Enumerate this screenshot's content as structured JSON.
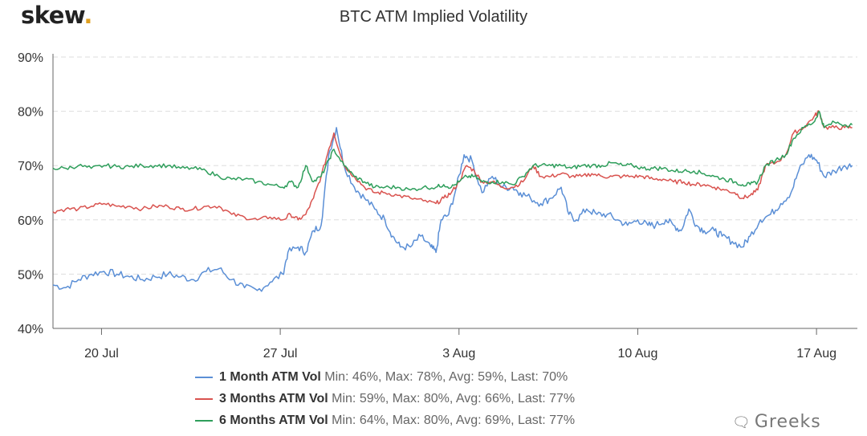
{
  "brand": {
    "logo_text": "skew",
    "logo_dot": "."
  },
  "watermark": {
    "text": "Greeks",
    "icon": "chat-bubble-icon"
  },
  "colors": {
    "one_month": "#5b8fd6",
    "three_month": "#d9534f",
    "six_month": "#2e9e5b",
    "grid": "#dddddd",
    "axis": "#666666"
  },
  "chart_data": {
    "type": "line",
    "title": "BTC ATM Implied Volatility",
    "xlabel": "",
    "ylabel": "",
    "x_ticks": [
      {
        "label": "20 Jul",
        "x": 2.9
      },
      {
        "label": "27 Jul",
        "x": 9.9
      },
      {
        "label": "3 Aug",
        "x": 16.9
      },
      {
        "label": "10 Aug",
        "x": 23.9
      },
      {
        "label": "17 Aug",
        "x": 30.9
      }
    ],
    "xlim": [
      1.0,
      32.5
    ],
    "y_ticks": [
      "40%",
      "50%",
      "60%",
      "70%",
      "80%",
      "90%"
    ],
    "ylim": [
      40,
      90
    ],
    "grid": "horizontal dashed",
    "series": [
      {
        "name": "1 Month ATM Vol",
        "stats": "Min: 46%, Max: 78%, Avg: 59%, Last: 70%",
        "color_key": "one_month",
        "points": [
          [
            1.0,
            48
          ],
          [
            1.5,
            47.5
          ],
          [
            2.0,
            49
          ],
          [
            2.5,
            50
          ],
          [
            3.0,
            50.5
          ],
          [
            3.5,
            50
          ],
          [
            4.0,
            49.5
          ],
          [
            4.5,
            49
          ],
          [
            5.0,
            49.5
          ],
          [
            5.5,
            50
          ],
          [
            6.0,
            49.5
          ],
          [
            6.5,
            49
          ],
          [
            7.0,
            50.5
          ],
          [
            7.5,
            51
          ],
          [
            8.0,
            49
          ],
          [
            8.5,
            47.5
          ],
          [
            9.0,
            47
          ],
          [
            9.5,
            48.5
          ],
          [
            10.0,
            50
          ],
          [
            10.2,
            54
          ],
          [
            10.6,
            55
          ],
          [
            10.9,
            54
          ],
          [
            11.2,
            58
          ],
          [
            11.5,
            59
          ],
          [
            11.8,
            72
          ],
          [
            12.1,
            77
          ],
          [
            12.4,
            70
          ],
          [
            12.8,
            66
          ],
          [
            13.2,
            64
          ],
          [
            13.6,
            62
          ],
          [
            14.0,
            60
          ],
          [
            14.3,
            57
          ],
          [
            14.6,
            55
          ],
          [
            15.0,
            55
          ],
          [
            15.4,
            57
          ],
          [
            15.8,
            55
          ],
          [
            16.0,
            54
          ],
          [
            16.2,
            60
          ],
          [
            16.5,
            61
          ],
          [
            16.8,
            66
          ],
          [
            17.1,
            72
          ],
          [
            17.4,
            71
          ],
          [
            17.8,
            65
          ],
          [
            18.2,
            68
          ],
          [
            18.6,
            66
          ],
          [
            19.0,
            66
          ],
          [
            19.3,
            65
          ],
          [
            19.7,
            64
          ],
          [
            20.1,
            63
          ],
          [
            20.5,
            64
          ],
          [
            20.9,
            66
          ],
          [
            21.2,
            61
          ],
          [
            21.5,
            60
          ],
          [
            21.9,
            62
          ],
          [
            22.3,
            61
          ],
          [
            22.7,
            61
          ],
          [
            23.1,
            60
          ],
          [
            23.5,
            59
          ],
          [
            23.9,
            60
          ],
          [
            24.3,
            59
          ],
          [
            24.6,
            59
          ],
          [
            25.0,
            60
          ],
          [
            25.3,
            59
          ],
          [
            25.6,
            58
          ],
          [
            25.9,
            62
          ],
          [
            26.2,
            59
          ],
          [
            26.5,
            58
          ],
          [
            26.9,
            58
          ],
          [
            27.2,
            57
          ],
          [
            27.6,
            56
          ],
          [
            28.0,
            55
          ],
          [
            28.3,
            57
          ],
          [
            28.7,
            60
          ],
          [
            29.1,
            61
          ],
          [
            29.5,
            63
          ],
          [
            29.9,
            65
          ],
          [
            30.2,
            69
          ],
          [
            30.6,
            72
          ],
          [
            30.9,
            71
          ],
          [
            31.2,
            68
          ],
          [
            31.6,
            69
          ],
          [
            32.0,
            70
          ],
          [
            32.3,
            70
          ]
        ]
      },
      {
        "name": "3 Months ATM Vol",
        "stats": "Min: 59%, Max: 80%, Avg: 66%, Last: 77%",
        "color_key": "three_month",
        "points": [
          [
            1.0,
            61.5
          ],
          [
            1.5,
            62
          ],
          [
            2.0,
            62
          ],
          [
            2.5,
            62.5
          ],
          [
            3.0,
            63
          ],
          [
            3.5,
            62.5
          ],
          [
            4.0,
            62.5
          ],
          [
            4.5,
            62
          ],
          [
            5.0,
            62.5
          ],
          [
            5.5,
            62.5
          ],
          [
            6.0,
            62
          ],
          [
            6.5,
            62
          ],
          [
            7.0,
            62.5
          ],
          [
            7.5,
            62.5
          ],
          [
            8.0,
            61
          ],
          [
            8.5,
            60.5
          ],
          [
            9.0,
            60
          ],
          [
            9.5,
            60.5
          ],
          [
            10.0,
            60
          ],
          [
            10.3,
            61
          ],
          [
            10.6,
            60
          ],
          [
            10.9,
            61
          ],
          [
            11.2,
            64
          ],
          [
            11.5,
            68
          ],
          [
            11.8,
            73
          ],
          [
            12.0,
            76
          ],
          [
            12.4,
            70
          ],
          [
            12.8,
            68
          ],
          [
            13.2,
            66
          ],
          [
            13.6,
            65
          ],
          [
            14.0,
            65
          ],
          [
            14.5,
            64.5
          ],
          [
            15.0,
            64
          ],
          [
            15.5,
            63.5
          ],
          [
            16.0,
            63
          ],
          [
            16.3,
            64
          ],
          [
            16.6,
            65
          ],
          [
            16.9,
            67
          ],
          [
            17.2,
            70
          ],
          [
            17.5,
            69
          ],
          [
            17.8,
            67
          ],
          [
            18.2,
            67
          ],
          [
            18.6,
            66
          ],
          [
            19.0,
            66
          ],
          [
            19.4,
            67
          ],
          [
            19.8,
            70
          ],
          [
            20.1,
            68
          ],
          [
            20.5,
            68
          ],
          [
            20.9,
            68.5
          ],
          [
            21.3,
            68
          ],
          [
            21.7,
            68
          ],
          [
            22.1,
            68.5
          ],
          [
            22.5,
            68
          ],
          [
            22.9,
            68
          ],
          [
            23.3,
            68
          ],
          [
            23.7,
            68
          ],
          [
            24.1,
            68
          ],
          [
            24.5,
            67.5
          ],
          [
            24.9,
            67.5
          ],
          [
            25.3,
            67
          ],
          [
            25.7,
            67
          ],
          [
            26.1,
            66.5
          ],
          [
            26.5,
            66.5
          ],
          [
            26.9,
            66
          ],
          [
            27.3,
            65.5
          ],
          [
            27.7,
            65
          ],
          [
            28.0,
            64
          ],
          [
            28.3,
            64.5
          ],
          [
            28.6,
            65.5
          ],
          [
            28.9,
            70
          ],
          [
            29.3,
            70.5
          ],
          [
            29.7,
            72
          ],
          [
            30.0,
            76
          ],
          [
            30.4,
            77
          ],
          [
            30.8,
            79
          ],
          [
            31.0,
            80
          ],
          [
            31.2,
            77
          ],
          [
            31.6,
            77
          ],
          [
            32.0,
            77
          ],
          [
            32.3,
            77
          ]
        ]
      },
      {
        "name": "6 Months ATM Vol",
        "stats": "Min: 64%, Max: 80%, Avg: 69%, Last: 77%",
        "color_key": "six_month",
        "points": [
          [
            1.0,
            69.5
          ],
          [
            1.5,
            69.5
          ],
          [
            2.0,
            70
          ],
          [
            2.5,
            69.5
          ],
          [
            3.0,
            70
          ],
          [
            3.5,
            69.8
          ],
          [
            4.0,
            69.8
          ],
          [
            4.5,
            70
          ],
          [
            5.0,
            70
          ],
          [
            5.5,
            70
          ],
          [
            6.0,
            69.5
          ],
          [
            6.5,
            69.5
          ],
          [
            7.0,
            69
          ],
          [
            7.5,
            68
          ],
          [
            8.0,
            67.5
          ],
          [
            8.5,
            67.5
          ],
          [
            9.0,
            67
          ],
          [
            9.5,
            66.5
          ],
          [
            10.0,
            66
          ],
          [
            10.3,
            67
          ],
          [
            10.6,
            66
          ],
          [
            10.9,
            70
          ],
          [
            11.2,
            67
          ],
          [
            11.5,
            68
          ],
          [
            11.8,
            71
          ],
          [
            12.0,
            73
          ],
          [
            12.4,
            70
          ],
          [
            12.8,
            68
          ],
          [
            13.2,
            67
          ],
          [
            13.6,
            66
          ],
          [
            14.0,
            66
          ],
          [
            14.5,
            66
          ],
          [
            15.0,
            65.5
          ],
          [
            15.5,
            66
          ],
          [
            16.0,
            66
          ],
          [
            16.3,
            66.5
          ],
          [
            16.6,
            66
          ],
          [
            16.9,
            67
          ],
          [
            17.2,
            68
          ],
          [
            17.5,
            68
          ],
          [
            17.8,
            67
          ],
          [
            18.2,
            67
          ],
          [
            18.6,
            67
          ],
          [
            19.0,
            66.5
          ],
          [
            19.4,
            68
          ],
          [
            19.8,
            70
          ],
          [
            20.1,
            70
          ],
          [
            20.5,
            70
          ],
          [
            20.9,
            70
          ],
          [
            21.3,
            69.5
          ],
          [
            21.7,
            70
          ],
          [
            22.1,
            70
          ],
          [
            22.5,
            70
          ],
          [
            22.9,
            70.5
          ],
          [
            23.3,
            70
          ],
          [
            23.7,
            70
          ],
          [
            24.1,
            69.5
          ],
          [
            24.5,
            69.5
          ],
          [
            24.9,
            69.5
          ],
          [
            25.3,
            69
          ],
          [
            25.7,
            69
          ],
          [
            26.1,
            69
          ],
          [
            26.5,
            68.5
          ],
          [
            26.9,
            68
          ],
          [
            27.3,
            67.5
          ],
          [
            27.7,
            67
          ],
          [
            28.0,
            66.5
          ],
          [
            28.3,
            66.5
          ],
          [
            28.6,
            67
          ],
          [
            28.9,
            70
          ],
          [
            29.3,
            71
          ],
          [
            29.7,
            72
          ],
          [
            30.0,
            75
          ],
          [
            30.4,
            77
          ],
          [
            30.8,
            78
          ],
          [
            31.0,
            80
          ],
          [
            31.2,
            77
          ],
          [
            31.6,
            78
          ],
          [
            32.0,
            77.5
          ],
          [
            32.3,
            77.5
          ]
        ]
      }
    ]
  }
}
